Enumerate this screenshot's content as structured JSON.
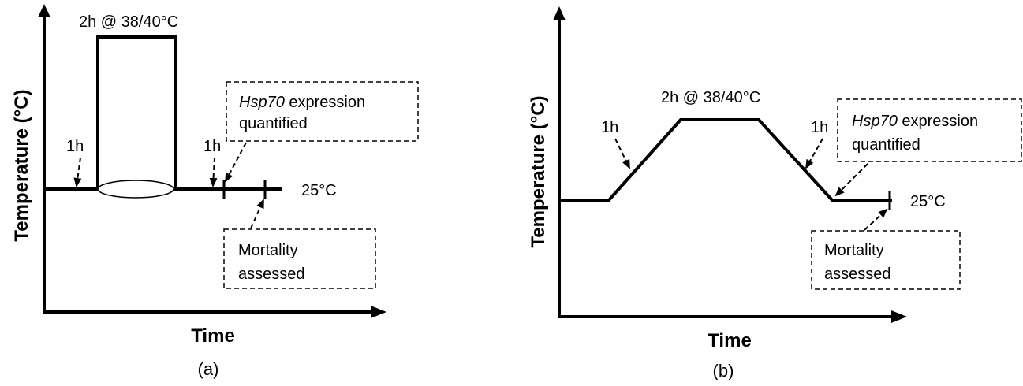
{
  "panel_a": {
    "label": "(a)",
    "y_axis_title": "Temperature (°C)",
    "x_axis_title": "Time",
    "peak_label": "2h @ 38/40°C",
    "ramp_up_label": "1h",
    "ramp_down_label": "1h",
    "baseline_label": "25°C",
    "expression_box": {
      "gene": "Hsp70",
      "line1_rest": " expression",
      "line2": "quantified"
    },
    "mortality_box": {
      "line1": "Mortality",
      "line2": "assessed"
    }
  },
  "panel_b": {
    "label": "(b)",
    "y_axis_title": "Temperature (°C)",
    "x_axis_title": "Time",
    "peak_label": "2h @ 38/40°C",
    "ramp_up_label": "1h",
    "ramp_down_label": "1h",
    "baseline_label": "25°C",
    "expression_box": {
      "gene": "Hsp70",
      "line1_rest": " expression",
      "line2": "quantified"
    },
    "mortality_box": {
      "line1": "Mortality",
      "line2": "assessed"
    }
  }
}
